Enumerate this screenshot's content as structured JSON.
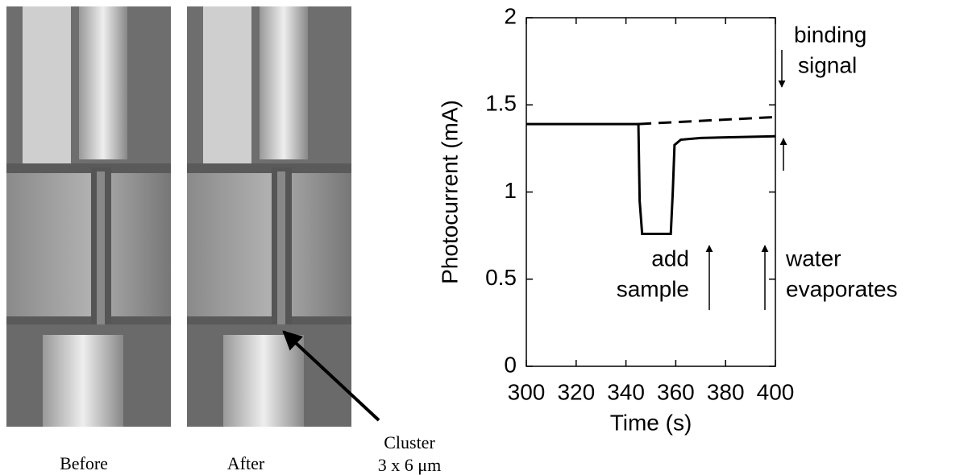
{
  "panels": {
    "labels": [
      "Before",
      "After"
    ],
    "annotation": [
      "Cluster",
      "3 x  6 μm"
    ]
  },
  "chart_data": {
    "type": "line",
    "x_label": "Time (s)",
    "y_label": "Photocurrent (mA)",
    "series": [
      {
        "color": "#000000",
        "style": "solid",
        "x": [
          300,
          345,
          345.5,
          346.5,
          358,
          358.8,
          359.5,
          362,
          370,
          400
        ],
        "values": [
          1.39,
          1.39,
          0.95,
          0.76,
          0.76,
          1.0,
          1.27,
          1.3,
          1.31,
          1.32
        ]
      },
      {
        "color": "#000000",
        "style": "dashed",
        "x": [
          345,
          400
        ],
        "values": [
          1.39,
          1.43
        ]
      }
    ],
    "xlim": [
      300,
      400
    ],
    "xticks": [
      300,
      320,
      340,
      360,
      380,
      400
    ],
    "ylim": [
      0,
      2
    ],
    "yticks": [
      0,
      0.5,
      1,
      1.5,
      2
    ],
    "annotations": [
      {
        "lines": [
          "binding",
          "signal"
        ]
      },
      {
        "lines": [
          "add",
          "sample"
        ]
      },
      {
        "lines": [
          "water",
          "evaporates"
        ]
      }
    ]
  }
}
